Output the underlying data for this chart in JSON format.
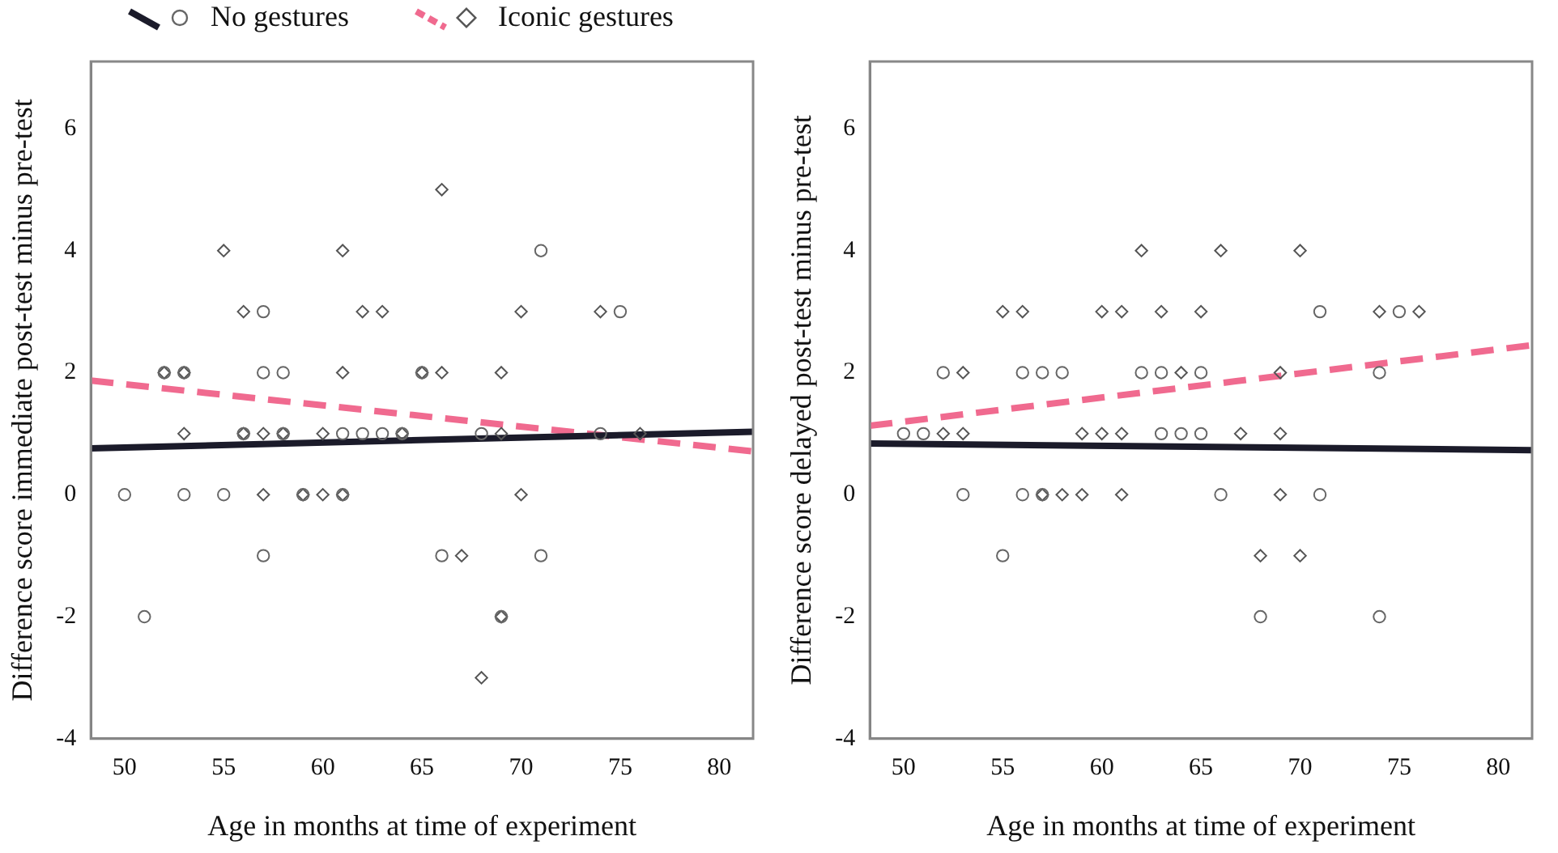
{
  "chart_data": [
    {
      "type": "scatter",
      "xlabel": "Age in months at time of experiment",
      "ylabel": "Difference score immediate post-test minus pre-test",
      "xlim": [
        48.3,
        81.7
      ],
      "ylim": [
        -4,
        7.1
      ],
      "xticks": [
        50,
        55,
        60,
        65,
        70,
        75,
        80
      ],
      "yticks": [
        -4,
        -2,
        0,
        2,
        4,
        6
      ],
      "grid": false,
      "legend": "top left",
      "series": [
        {
          "name": "No gestures",
          "marker": "circle",
          "color": "#666666",
          "x": [
            71,
            57,
            75,
            52,
            53,
            57,
            58,
            65,
            56,
            58,
            61,
            62,
            63,
            64,
            68,
            74,
            50,
            53,
            55,
            59,
            61,
            57,
            66,
            71,
            51,
            69
          ],
          "values": [
            4,
            3,
            3,
            2,
            2,
            2,
            2,
            2,
            1,
            1,
            1,
            1,
            1,
            1,
            1,
            1,
            0,
            0,
            0,
            0,
            0,
            -1,
            -1,
            -1,
            -2,
            -2
          ]
        },
        {
          "name": "Iconic gestures",
          "marker": "diamond",
          "color": "#555555",
          "x": [
            66,
            55,
            61,
            56,
            62,
            63,
            70,
            74,
            52,
            53,
            61,
            65,
            66,
            69,
            53,
            56,
            57,
            58,
            60,
            64,
            69,
            76,
            57,
            59,
            60,
            61,
            70,
            67,
            69,
            68
          ],
          "values": [
            5,
            4,
            4,
            3,
            3,
            3,
            3,
            3,
            2,
            2,
            2,
            2,
            2,
            2,
            1,
            1,
            1,
            1,
            1,
            1,
            1,
            1,
            0,
            0,
            0,
            0,
            0,
            -1,
            -2,
            -3
          ]
        },
        {
          "type": "line",
          "line_style": "solid",
          "color": "#1b1b2a",
          "x": [
            48.3,
            81.7
          ],
          "values": [
            0.76,
            1.03
          ]
        },
        {
          "type": "line",
          "line_style": "dashed",
          "color": "#f06a8f",
          "x": [
            48.3,
            81.7
          ],
          "values": [
            1.87,
            0.71
          ]
        }
      ]
    },
    {
      "type": "scatter",
      "xlabel": "Age in months at time of experiment",
      "ylabel": "Difference score delayed post-test minus pre-test",
      "xlim": [
        48.3,
        81.7
      ],
      "ylim": [
        -4,
        7.1
      ],
      "xticks": [
        50,
        55,
        60,
        65,
        70,
        75,
        80
      ],
      "yticks": [
        -4,
        -2,
        0,
        2,
        4,
        6
      ],
      "grid": false,
      "legend": false,
      "series": [
        {
          "marker": "circle",
          "color": "#666666",
          "x": [
            71,
            75,
            52,
            56,
            57,
            58,
            62,
            63,
            65,
            74,
            50,
            51,
            63,
            64,
            65,
            53,
            56,
            57,
            66,
            71,
            55,
            68,
            74
          ],
          "values": [
            3,
            3,
            2,
            2,
            2,
            2,
            2,
            2,
            2,
            2,
            1,
            1,
            1,
            1,
            1,
            0,
            0,
            0,
            0,
            0,
            -1,
            -2,
            -2
          ]
        },
        {
          "marker": "diamond",
          "color": "#555555",
          "x": [
            62,
            66,
            70,
            55,
            56,
            60,
            61,
            63,
            65,
            74,
            76,
            53,
            64,
            69,
            52,
            53,
            59,
            60,
            61,
            67,
            69,
            57,
            58,
            59,
            61,
            69,
            68,
            70
          ],
          "values": [
            4,
            4,
            4,
            3,
            3,
            3,
            3,
            3,
            3,
            3,
            3,
            2,
            2,
            2,
            1,
            1,
            1,
            1,
            1,
            1,
            1,
            0,
            0,
            0,
            0,
            0,
            -1,
            -1
          ]
        },
        {
          "type": "line",
          "line_style": "solid",
          "color": "#1b1b2a",
          "x": [
            48.3,
            81.7
          ],
          "values": [
            0.84,
            0.73
          ]
        },
        {
          "type": "line",
          "line_style": "dashed",
          "color": "#f06a8f",
          "x": [
            48.3,
            81.7
          ],
          "values": [
            1.13,
            2.45
          ]
        }
      ]
    }
  ]
}
